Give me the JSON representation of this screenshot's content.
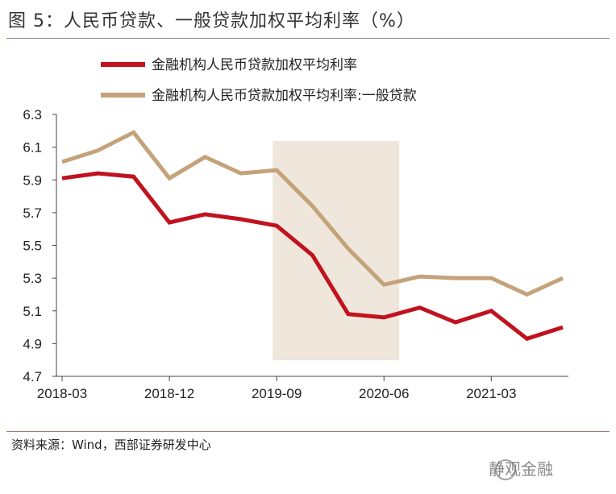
{
  "title": "图 5：人民币贷款、一般贷款加权平均利率（%）",
  "source": "资料来源：Wind，西部证券研发中心",
  "watermark": "静观金融",
  "colors": {
    "series1": "#c1121f",
    "series2": "#c4a27a",
    "shade": "#efe6dc",
    "axis": "#444444",
    "rule": "#9a7b6b"
  },
  "chart_data": {
    "type": "line",
    "title": "",
    "xlabel": "",
    "ylabel": "",
    "ylim": [
      4.7,
      6.3
    ],
    "yticks": [
      "6.3",
      "6.1",
      "5.9",
      "5.7",
      "5.5",
      "5.3",
      "5.1",
      "4.9",
      "4.7"
    ],
    "ytick_values": [
      6.3,
      6.1,
      5.9,
      5.7,
      5.5,
      5.3,
      5.1,
      4.9,
      4.7
    ],
    "x": [
      "2018-03",
      "2018-06",
      "2018-09",
      "2018-12",
      "2019-03",
      "2019-06",
      "2019-09",
      "2019-12",
      "2020-03",
      "2020-06",
      "2020-09",
      "2020-12",
      "2021-03",
      "2021-06",
      "2021-09"
    ],
    "xtick_labels": [
      "2018-03",
      "2018-12",
      "2019-09",
      "2020-06",
      "2021-03"
    ],
    "xtick_indices": [
      0,
      3,
      6,
      9,
      12
    ],
    "shaded_region": [
      6,
      9
    ],
    "legend_position": "top",
    "series": [
      {
        "name": "金融机构人民币贷款加权平均利率",
        "values": [
          5.91,
          5.94,
          5.92,
          5.64,
          5.69,
          5.66,
          5.62,
          5.44,
          5.08,
          5.06,
          5.12,
          5.03,
          5.1,
          4.93,
          5.0
        ]
      },
      {
        "name": "金融机构人民币贷款加权平均利率:一般贷款",
        "values": [
          6.01,
          6.08,
          6.19,
          5.91,
          6.04,
          5.94,
          5.96,
          5.74,
          5.48,
          5.26,
          5.31,
          5.3,
          5.3,
          5.2,
          5.3
        ]
      }
    ]
  }
}
